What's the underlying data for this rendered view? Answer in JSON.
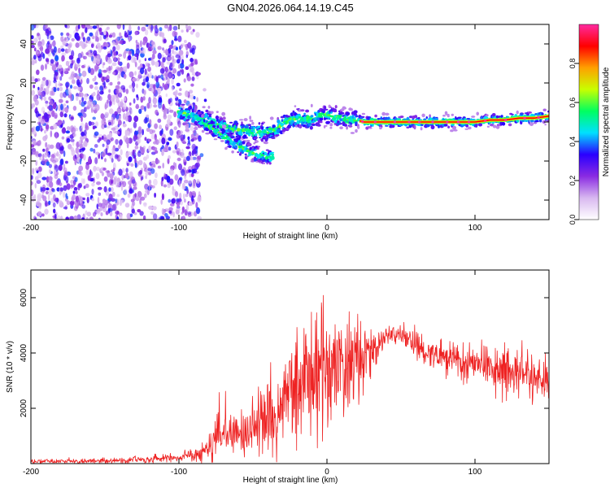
{
  "title": "GN04.2026.064.14.19.C45",
  "colors": {
    "spectrogram_points": "#5a00c8",
    "spectrogram_faint": "#c9a8ec",
    "snr_line": "#ee2222",
    "track_core": "#ff0000",
    "axes": "#000000"
  },
  "chart_data": [
    {
      "type": "heatmap",
      "title": "GN04.2026.064.14.19.C45",
      "xlabel": "Height of straight line (km)",
      "ylabel": "Frequency (Hz)",
      "xlim": [
        -200,
        150
      ],
      "ylim": [
        -50,
        50
      ],
      "xticks": [
        -200,
        -100,
        0,
        100
      ],
      "yticks": [
        -40,
        -20,
        0,
        20,
        40
      ],
      "noise_region_x": [
        -200,
        -86
      ],
      "track": {
        "x": [
          -100,
          -95,
          -90,
          -85,
          -80,
          -75,
          -70,
          -65,
          -60,
          -55,
          -50,
          -45,
          -40,
          -35,
          -30,
          -25,
          -20,
          -15,
          -10,
          -5,
          0,
          5,
          10,
          15,
          20,
          25,
          30,
          60,
          90,
          100,
          110,
          120,
          130,
          140,
          150
        ],
        "y": [
          5,
          4,
          3,
          2,
          1,
          -1,
          -2,
          -3,
          -4,
          -4,
          -5,
          -5,
          -5,
          -4,
          -1,
          1,
          2,
          1,
          2,
          3,
          4,
          3,
          2,
          1,
          1,
          0,
          0,
          0,
          0,
          0,
          1,
          1,
          2,
          2,
          3
        ]
      },
      "secondary_branch": {
        "x": [
          -90,
          -80,
          -70,
          -60,
          -50,
          -40,
          -36
        ],
        "y": [
          3,
          -2,
          -7,
          -12,
          -16,
          -18,
          -17
        ]
      },
      "colorbar": {
        "label": "Normalized spectral amplitude",
        "range": [
          0,
          1
        ],
        "ticks": [
          0.0,
          0.2,
          0.4,
          0.6,
          0.8
        ],
        "tick_labels": [
          "0.0",
          "0.2",
          "0.4",
          "0.6",
          "0.8"
        ],
        "colormap": [
          "#ffffff",
          "#d8b8f0",
          "#8a2be2",
          "#2a00ff",
          "#00e0ff",
          "#00ff60",
          "#c8ff00",
          "#ffa000",
          "#ff0000",
          "#ff2aa0"
        ]
      }
    },
    {
      "type": "line",
      "xlabel": "Height of straight line (km)",
      "ylabel": "SNR (10 * v/v)",
      "xlim": [
        -200,
        150
      ],
      "ylim": [
        0,
        7000
      ],
      "xticks": [
        -200,
        -100,
        0,
        100
      ],
      "yticks": [
        2000,
        4000,
        6000
      ],
      "series": [
        {
          "name": "SNR",
          "envelope_x": [
            -200,
            -150,
            -100,
            -85,
            -78,
            -75,
            -60,
            -45,
            -35,
            -25,
            -15,
            -5,
            0,
            10,
            20,
            30,
            40,
            45,
            50,
            60,
            70,
            80,
            90,
            100,
            110,
            120,
            130,
            140,
            150
          ],
          "envelope_mean": [
            80,
            100,
            200,
            400,
            600,
            1100,
            1100,
            1400,
            1600,
            2600,
            3000,
            3100,
            3300,
            3400,
            3600,
            4000,
            4600,
            4700,
            4600,
            4300,
            4000,
            3800,
            3700,
            3600,
            3500,
            3400,
            3300,
            3100,
            3000
          ],
          "envelope_spread": [
            70,
            90,
            150,
            300,
            500,
            700,
            700,
            1000,
            1300,
            1700,
            2000,
            2000,
            1900,
            1700,
            1500,
            600,
            300,
            300,
            350,
            450,
            500,
            550,
            600,
            650,
            800,
            900,
            900,
            800,
            700
          ]
        }
      ]
    }
  ]
}
